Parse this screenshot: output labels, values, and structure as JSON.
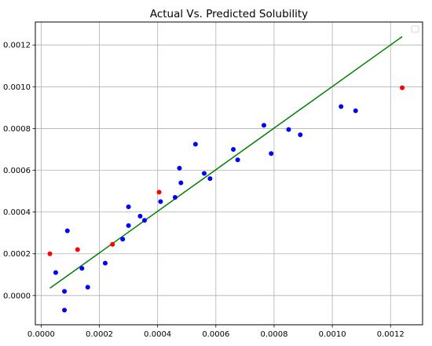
{
  "chart_data": {
    "type": "scatter",
    "title": "Actual Vs. Predicted Solubility",
    "xlabel": "",
    "ylabel": "",
    "xlim": [
      -2e-05,
      0.00131
    ],
    "ylim": [
      -0.00014,
      0.00131
    ],
    "x_ticks": [
      0.0,
      0.0002,
      0.0004,
      0.0006,
      0.0008,
      0.001,
      0.0012
    ],
    "x_tick_labels": [
      "0.0000",
      "0.0002",
      "0.0004",
      "0.0006",
      "0.0008",
      "0.0010",
      "0.0012"
    ],
    "y_ticks": [
      0.0,
      0.0002,
      0.0004,
      0.0006,
      0.0008,
      0.001,
      0.0012
    ],
    "y_tick_labels": [
      "0.0000",
      "0.0002",
      "0.0004",
      "0.0006",
      "0.0008",
      "0.0010",
      "0.0012"
    ],
    "grid": true,
    "legend": {
      "placement": "top-right",
      "entries": []
    },
    "series": [
      {
        "color": "#0000ff",
        "points": [
          [
            5e-05,
            0.00011
          ],
          [
            8e-05,
            2e-05
          ],
          [
            8e-05,
            -7e-05
          ],
          [
            9e-05,
            0.00031
          ],
          [
            0.00014,
            0.00013
          ],
          [
            0.00016,
            4e-05
          ],
          [
            0.00022,
            0.000155
          ],
          [
            0.00028,
            0.00027
          ],
          [
            0.0003,
            0.000425
          ],
          [
            0.0003,
            0.000335
          ],
          [
            0.00034,
            0.00038
          ],
          [
            0.000355,
            0.00036
          ],
          [
            0.00041,
            0.00045
          ],
          [
            0.00046,
            0.00047
          ],
          [
            0.000475,
            0.00061
          ],
          [
            0.00048,
            0.00054
          ],
          [
            0.00053,
            0.000725
          ],
          [
            0.00056,
            0.000585
          ],
          [
            0.00058,
            0.00056
          ],
          [
            0.00066,
            0.0007
          ],
          [
            0.000675,
            0.00065
          ],
          [
            0.000765,
            0.000815
          ],
          [
            0.00079,
            0.00068
          ],
          [
            0.00085,
            0.000795
          ],
          [
            0.00089,
            0.00077
          ],
          [
            0.00103,
            0.000905
          ],
          [
            0.00108,
            0.000885
          ]
        ]
      },
      {
        "color": "#ff0000",
        "points": [
          [
            3e-05,
            0.0002
          ],
          [
            0.000125,
            0.00022
          ],
          [
            0.000245,
            0.000245
          ],
          [
            0.000405,
            0.000495
          ],
          [
            0.00124,
            0.000995
          ]
        ]
      }
    ],
    "fit_line": {
      "color": "#008000",
      "x": [
        3e-05,
        0.00124
      ],
      "y": [
        3.5e-05,
        0.00124
      ]
    }
  }
}
